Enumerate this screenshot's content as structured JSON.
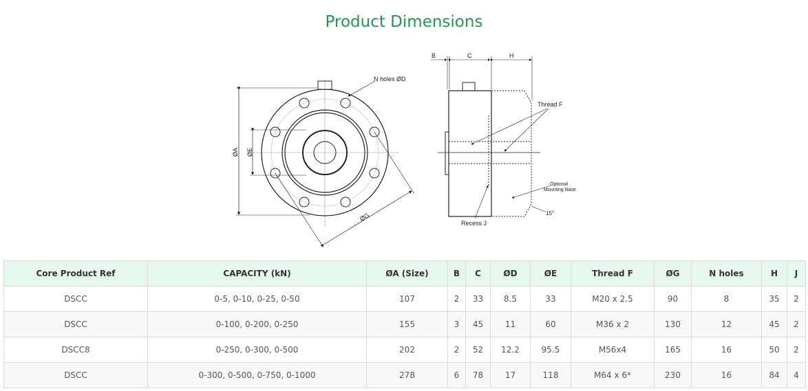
{
  "title": "Product Dimensions",
  "diagram": {
    "labels": {
      "n_holes": "N holes ØD",
      "a": "ØA",
      "e": "ØE",
      "g": "ØG",
      "b": "B",
      "c": "C",
      "h": "H",
      "thread": "Thread F",
      "optional": "Optional",
      "mounting": "Mounting Base",
      "recess": "Recess J",
      "angle": "15°"
    }
  },
  "table": {
    "headers": [
      "Core Product Ref",
      "CAPACITY (kN)",
      "ØA (Size)",
      "B",
      "C",
      "ØD",
      "ØE",
      "Thread F",
      "ØG",
      "N holes",
      "H",
      "J"
    ],
    "rows": [
      [
        "DSCC",
        "0-5, 0-10, 0-25, 0-50",
        "107",
        "2",
        "33",
        "8.5",
        "33",
        "M20 x 2.5",
        "90",
        "8",
        "35",
        "2"
      ],
      [
        "DSCC",
        "0-100, 0-200, 0-250",
        "155",
        "3",
        "45",
        "11",
        "60",
        "M36 x 2",
        "130",
        "12",
        "45",
        "2"
      ],
      [
        "DSCC8",
        "0-250, 0-300, 0-500",
        "202",
        "2",
        "52",
        "12.2",
        "95.5",
        "M56x4",
        "165",
        "16",
        "50",
        "2"
      ],
      [
        "DSCC",
        "0-300, 0-500, 0-750, 0-1000",
        "278",
        "6",
        "78",
        "17",
        "118",
        "M64 x 6*",
        "230",
        "16",
        "84",
        "4"
      ]
    ]
  }
}
